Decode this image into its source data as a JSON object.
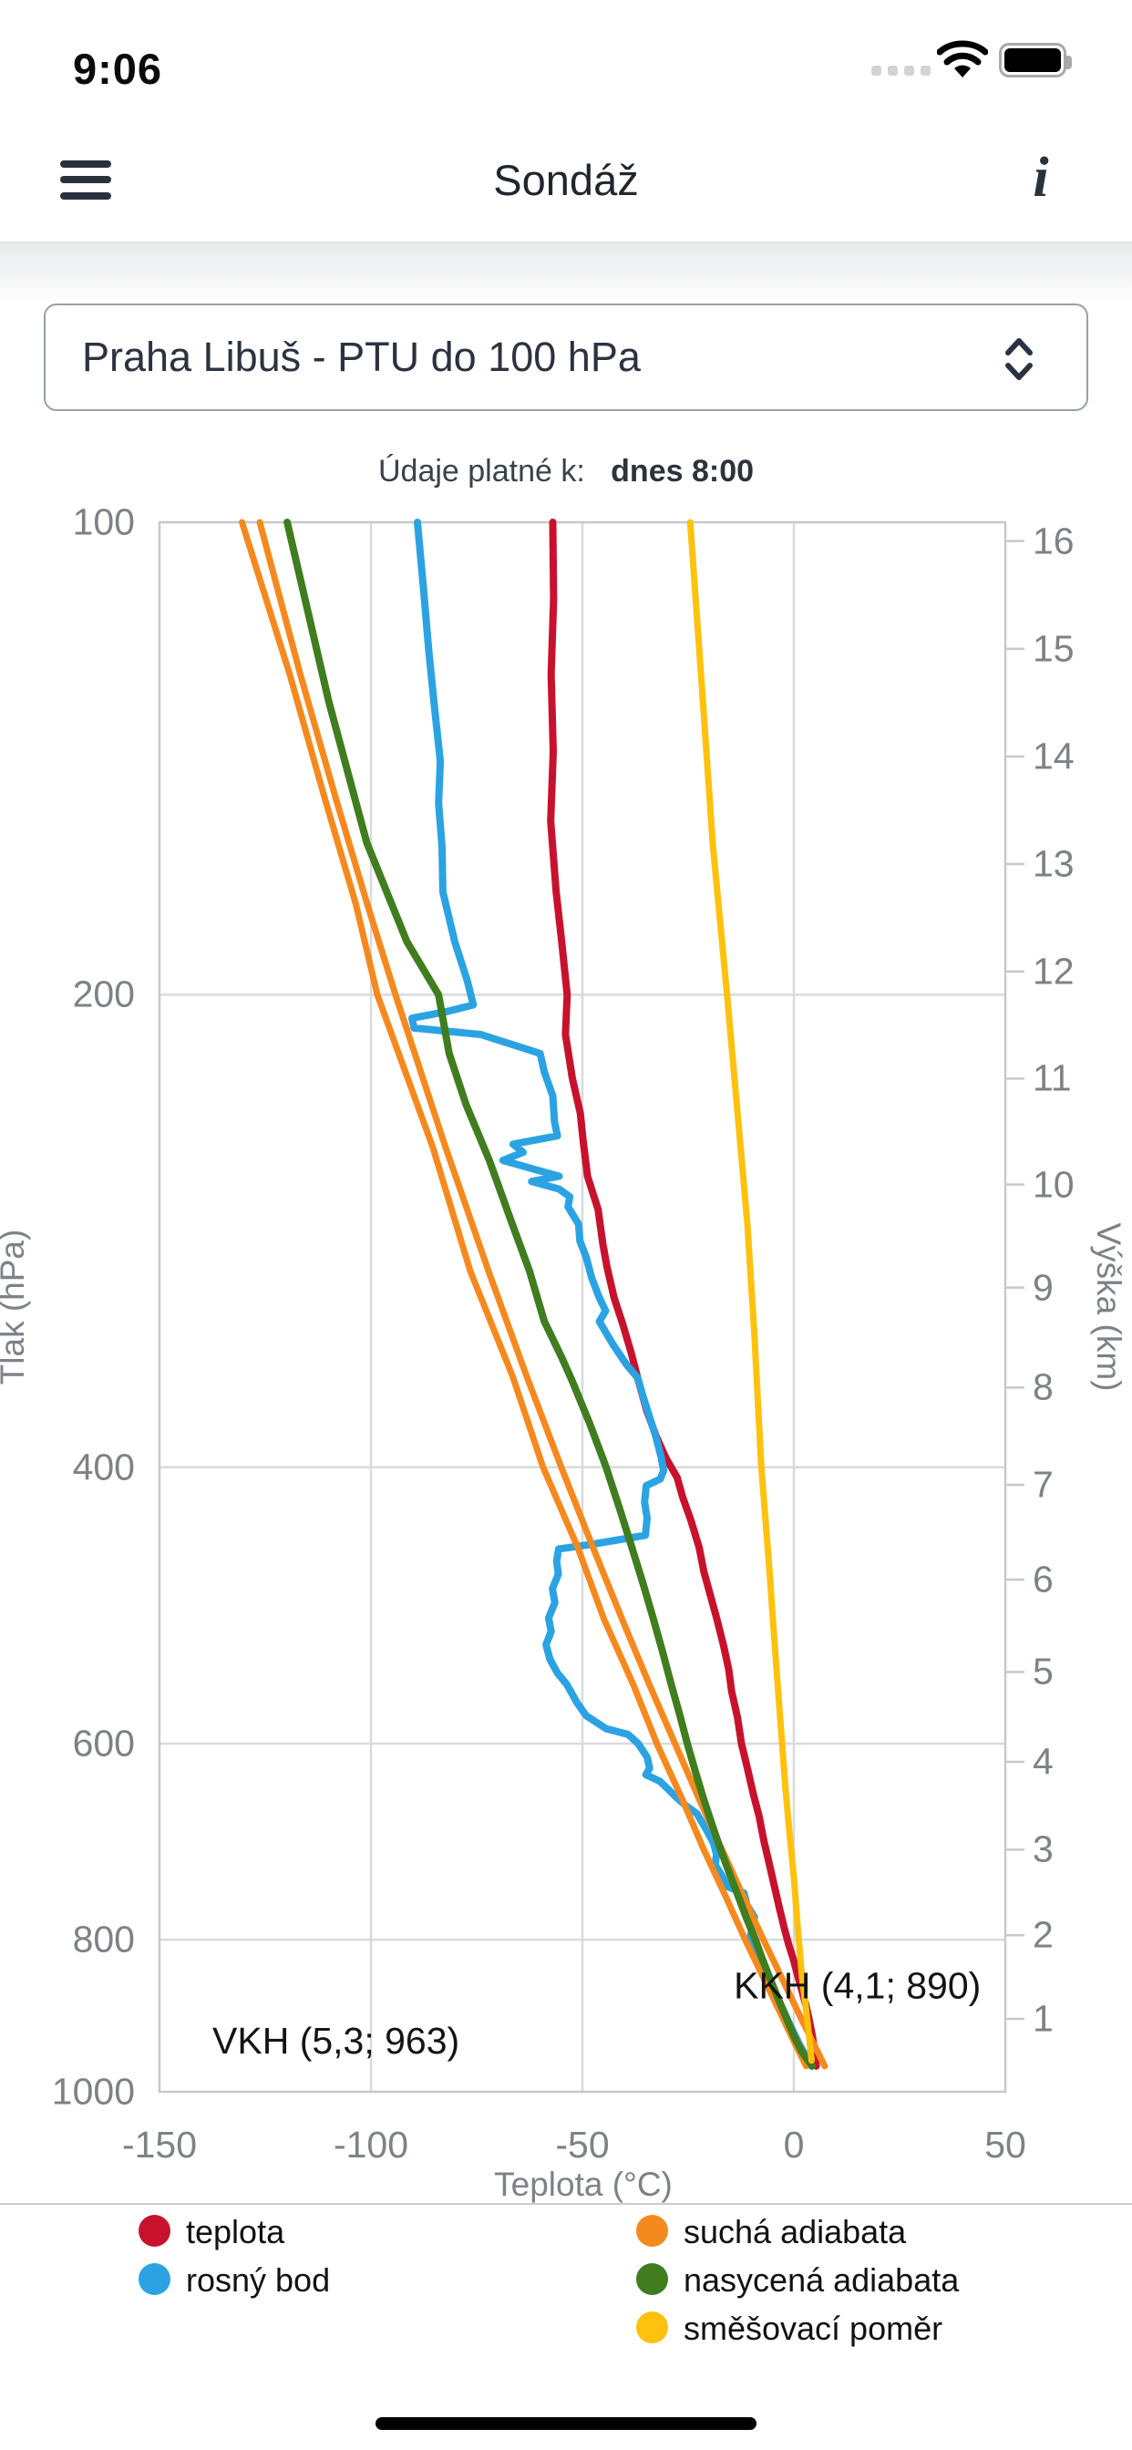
{
  "status_bar": {
    "time": "9:06"
  },
  "header": {
    "title": "Sondáž",
    "info_glyph": "i"
  },
  "station_select": {
    "value": "Praha Libuš - PTU do 100 hPa"
  },
  "validity": {
    "label": "Údaje platné k:",
    "value": "dnes 8:00"
  },
  "chart_data": {
    "type": "line",
    "xlabel": "Teplota (°C)",
    "ylabel_left": "Tlak (hPa)",
    "ylabel_right": "Výška (km)",
    "xlim": [
      -150,
      50
    ],
    "x_ticks": [
      -150,
      -100,
      -50,
      0,
      50
    ],
    "x_gridlines": [
      -100,
      -50,
      0
    ],
    "pressure_range": [
      100,
      1000
    ],
    "pressure_scale": "log",
    "pressure_ticks": [
      100,
      200,
      400,
      600,
      800,
      1000
    ],
    "pressure_gridlines": [
      200,
      400,
      600,
      800
    ],
    "km_ticks": [
      {
        "km": 1,
        "p": 898.6
      },
      {
        "km": 2,
        "p": 794.8
      },
      {
        "km": 3,
        "p": 701.1
      },
      {
        "km": 4,
        "p": 616.3
      },
      {
        "km": 5,
        "p": 540.1
      },
      {
        "km": 6,
        "p": 471.7
      },
      {
        "km": 7,
        "p": 410.5
      },
      {
        "km": 8,
        "p": 355.9
      },
      {
        "km": 9,
        "p": 307.3
      },
      {
        "km": 10,
        "p": 264.2
      },
      {
        "km": 11,
        "p": 226.2
      },
      {
        "km": 12,
        "p": 193.3
      },
      {
        "km": 13,
        "p": 165.1
      },
      {
        "km": 14,
        "p": 141.0
      },
      {
        "km": 15,
        "p": 120.4
      },
      {
        "km": 16,
        "p": 102.8
      }
    ],
    "annotations": [
      {
        "text": "VKH (5,3; 963)",
        "T": -137.5,
        "p": 928,
        "anchor": "start"
      },
      {
        "text": "KKH (4,1; 890)",
        "T": -14.2,
        "p": 856,
        "anchor": "start"
      }
    ],
    "series": [
      {
        "name": "teplota",
        "color": "#c8122d",
        "width": 8,
        "points": [
          [
            -57,
            100
          ],
          [
            -56.8,
            112
          ],
          [
            -57.4,
            125
          ],
          [
            -56.9,
            140
          ],
          [
            -57.5,
            155
          ],
          [
            -56.2,
            172
          ],
          [
            -54.8,
            186
          ],
          [
            -53.6,
            200
          ],
          [
            -54,
            212
          ],
          [
            -52.4,
            226
          ],
          [
            -50.5,
            238
          ],
          [
            -49.8,
            248
          ],
          [
            -48.8,
            261
          ],
          [
            -46.3,
            274
          ],
          [
            -45.2,
            288
          ],
          [
            -44.2,
            298
          ],
          [
            -42.5,
            312
          ],
          [
            -40.5,
            324
          ],
          [
            -38.5,
            338
          ],
          [
            -36.8,
            352
          ],
          [
            -34.8,
            368
          ],
          [
            -32.6,
            382
          ],
          [
            -30.2,
            395
          ],
          [
            -27.6,
            406
          ],
          [
            -26.3,
            418
          ],
          [
            -24.4,
            432
          ],
          [
            -22.4,
            450
          ],
          [
            -21.3,
            466
          ],
          [
            -19.8,
            482
          ],
          [
            -18.2,
            500
          ],
          [
            -16.6,
            520
          ],
          [
            -15.4,
            538
          ],
          [
            -14.7,
            556
          ],
          [
            -13.3,
            578
          ],
          [
            -12.4,
            600
          ],
          [
            -11,
            622
          ],
          [
            -9.6,
            646
          ],
          [
            -8.2,
            668
          ],
          [
            -7.1,
            692
          ],
          [
            -5.8,
            716
          ],
          [
            -4.6,
            740
          ],
          [
            -3.4,
            764
          ],
          [
            -2.2,
            788
          ],
          [
            -1.2,
            806
          ],
          [
            -0.2,
            822
          ],
          [
            0.9,
            843
          ],
          [
            1.9,
            862
          ],
          [
            2.9,
            882
          ],
          [
            3.7,
            902
          ],
          [
            4.4,
            922
          ],
          [
            4.9,
            942
          ],
          [
            5.3,
            963
          ]
        ]
      },
      {
        "name": "rosný bod",
        "color": "#2ba3e3",
        "width": 8,
        "points": [
          [
            -89,
            100
          ],
          [
            -87.6,
            110
          ],
          [
            -86.3,
            121
          ],
          [
            -85,
            131
          ],
          [
            -83.6,
            142
          ],
          [
            -84,
            151
          ],
          [
            -83.2,
            161
          ],
          [
            -83,
            172
          ],
          [
            -80.2,
            185
          ],
          [
            -77.2,
            196
          ],
          [
            -75.8,
            203
          ],
          [
            -82,
            205
          ],
          [
            -90.3,
            207
          ],
          [
            -89.8,
            210
          ],
          [
            -74,
            212
          ],
          [
            -60,
            218
          ],
          [
            -59,
            224
          ],
          [
            -57,
            232
          ],
          [
            -56.6,
            241
          ],
          [
            -55.9,
            246
          ],
          [
            -66.4,
            249
          ],
          [
            -64,
            252
          ],
          [
            -68.8,
            255
          ],
          [
            -60,
            259
          ],
          [
            -55.5,
            261
          ],
          [
            -62,
            263
          ],
          [
            -55.5,
            266
          ],
          [
            -53,
            269
          ],
          [
            -53.4,
            273
          ],
          [
            -50.9,
            280
          ],
          [
            -50.6,
            287
          ],
          [
            -49.1,
            294
          ],
          [
            -47.8,
            303
          ],
          [
            -46,
            312
          ],
          [
            -44.5,
            318
          ],
          [
            -46,
            323
          ],
          [
            -42.8,
            334
          ],
          [
            -39.6,
            344
          ],
          [
            -36.9,
            351
          ],
          [
            -35.6,
            361
          ],
          [
            -34.2,
            371
          ],
          [
            -32.7,
            382
          ],
          [
            -31.4,
            394
          ],
          [
            -30.8,
            402
          ],
          [
            -31.6,
            407
          ],
          [
            -34.9,
            411
          ],
          [
            -35.3,
            421
          ],
          [
            -34.7,
            431
          ],
          [
            -35.1,
            442
          ],
          [
            -48,
            448
          ],
          [
            -55.6,
            451
          ],
          [
            -56.1,
            459
          ],
          [
            -55.7,
            468
          ],
          [
            -57.1,
            478
          ],
          [
            -56.5,
            488
          ],
          [
            -58,
            499
          ],
          [
            -57.4,
            509
          ],
          [
            -58.6,
            519
          ],
          [
            -57.7,
            530
          ],
          [
            -55.9,
            541
          ],
          [
            -53.7,
            550
          ],
          [
            -51.3,
            565
          ],
          [
            -49.1,
            576
          ],
          [
            -44.4,
            587
          ],
          [
            -39.2,
            592
          ],
          [
            -36.8,
            600
          ],
          [
            -34.7,
            612
          ],
          [
            -34.1,
            622
          ],
          [
            -35,
            628
          ],
          [
            -31.7,
            634
          ],
          [
            -29.6,
            642
          ],
          [
            -27.6,
            650
          ],
          [
            -25.6,
            657
          ],
          [
            -22.9,
            665
          ],
          [
            -20.8,
            680
          ],
          [
            -19,
            694
          ],
          [
            -18.3,
            706
          ],
          [
            -18.6,
            717
          ],
          [
            -16.9,
            729
          ],
          [
            -15.8,
            740
          ],
          [
            -11.8,
            747
          ],
          [
            -11.1,
            760
          ],
          [
            -9.3,
            774
          ],
          [
            -10.4,
            799
          ],
          [
            -8.6,
            820
          ],
          [
            -6.6,
            841
          ],
          [
            -4.6,
            862
          ],
          [
            -2.6,
            886
          ],
          [
            -0.6,
            910
          ],
          [
            1.4,
            934
          ],
          [
            3,
            950
          ],
          [
            4.2,
            963
          ]
        ]
      },
      {
        "name": "suchá adiabata 1",
        "color": "#f6891e",
        "width": 7,
        "points": [
          [
            -130.5,
            100
          ],
          [
            -119.2,
            125
          ],
          [
            -110.9,
            150
          ],
          [
            -103.6,
            175
          ],
          [
            -98.5,
            200
          ],
          [
            -85.4,
            250
          ],
          [
            -76.5,
            300
          ],
          [
            -66.5,
            350
          ],
          [
            -59.3,
            400
          ],
          [
            -51.1,
            450
          ],
          [
            -44.9,
            500
          ],
          [
            -38,
            550
          ],
          [
            -32.4,
            600
          ],
          [
            -26.5,
            650
          ],
          [
            -21.4,
            700
          ],
          [
            -16.2,
            750
          ],
          [
            -11.5,
            800
          ],
          [
            -6.8,
            850
          ],
          [
            -2.4,
            900
          ],
          [
            -0.3,
            925
          ],
          [
            2.9,
            963
          ]
        ]
      },
      {
        "name": "suchá adiabata 2",
        "color": "#f6891e",
        "width": 7,
        "points": [
          [
            -126.3,
            100
          ],
          [
            -116.7,
            125
          ],
          [
            -108.3,
            150
          ],
          [
            -100.9,
            175
          ],
          [
            -94.2,
            200
          ],
          [
            -82.4,
            250
          ],
          [
            -72.2,
            300
          ],
          [
            -63.2,
            350
          ],
          [
            -55,
            400
          ],
          [
            -47.5,
            450
          ],
          [
            -40.6,
            500
          ],
          [
            -34.2,
            550
          ],
          [
            -28.1,
            600
          ],
          [
            -22.5,
            650
          ],
          [
            -17.1,
            700
          ],
          [
            -12,
            750
          ],
          [
            -7.2,
            800
          ],
          [
            -2.5,
            850
          ],
          [
            1.9,
            900
          ],
          [
            4.1,
            925
          ],
          [
            7.3,
            963
          ]
        ]
      },
      {
        "name": "nasycená adiabata",
        "color": "#3f7d1f",
        "width": 8,
        "points": [
          [
            -119.8,
            100
          ],
          [
            -110,
            130
          ],
          [
            -101,
            160
          ],
          [
            -91.5,
            185
          ],
          [
            -84,
            200
          ],
          [
            -81.5,
            218
          ],
          [
            -77.5,
            235
          ],
          [
            -72,
            255
          ],
          [
            -67,
            278
          ],
          [
            -62.5,
            300
          ],
          [
            -59,
            323
          ],
          [
            -55,
            340
          ],
          [
            -52.5,
            352
          ],
          [
            -48.3,
            375
          ],
          [
            -44.4,
            400
          ],
          [
            -41.2,
            425
          ],
          [
            -38.3,
            450
          ],
          [
            -35.6,
            475
          ],
          [
            -33.2,
            500
          ],
          [
            -31,
            525
          ],
          [
            -29,
            550
          ],
          [
            -27,
            575
          ],
          [
            -25.2,
            600
          ],
          [
            -23.3,
            625
          ],
          [
            -21.4,
            650
          ],
          [
            -19.4,
            675
          ],
          [
            -17.4,
            700
          ],
          [
            -15.3,
            725
          ],
          [
            -13.2,
            750
          ],
          [
            -11.2,
            775
          ],
          [
            -9.1,
            800
          ],
          [
            -7.3,
            825
          ],
          [
            -5.4,
            850
          ],
          [
            -3.5,
            875
          ],
          [
            -1.6,
            900
          ],
          [
            0.3,
            925
          ],
          [
            1.9,
            943
          ],
          [
            4.3,
            963
          ]
        ]
      },
      {
        "name": "směšovací poměr",
        "color": "#fec10d",
        "width": 7,
        "points": [
          [
            -24.5,
            100
          ],
          [
            -21.5,
            130
          ],
          [
            -19.2,
            160
          ],
          [
            -15.8,
            200
          ],
          [
            -13.2,
            240
          ],
          [
            -11,
            280
          ],
          [
            -9.3,
            330
          ],
          [
            -7.7,
            400
          ],
          [
            -5.9,
            460
          ],
          [
            -4.5,
            520
          ],
          [
            -3.2,
            580
          ],
          [
            -2,
            640
          ],
          [
            -0.9,
            690
          ],
          [
            0,
            730
          ],
          [
            1,
            790
          ],
          [
            1.9,
            843
          ],
          [
            3.2,
            900
          ],
          [
            4.2,
            955
          ]
        ]
      }
    ]
  },
  "legend": {
    "items": [
      {
        "label": "teplota",
        "color": "#c8122d",
        "col": 0,
        "row": 0
      },
      {
        "label": "rosný bod",
        "color": "#2ba3e3",
        "col": 0,
        "row": 1
      },
      {
        "label": "suchá adiabata",
        "color": "#f6891e",
        "col": 1,
        "row": 0
      },
      {
        "label": "nasycená adiabata",
        "color": "#3f7d1f",
        "col": 1,
        "row": 1
      },
      {
        "label": "směšovací poměr",
        "color": "#fec10d",
        "col": 1,
        "row": 2
      }
    ]
  }
}
